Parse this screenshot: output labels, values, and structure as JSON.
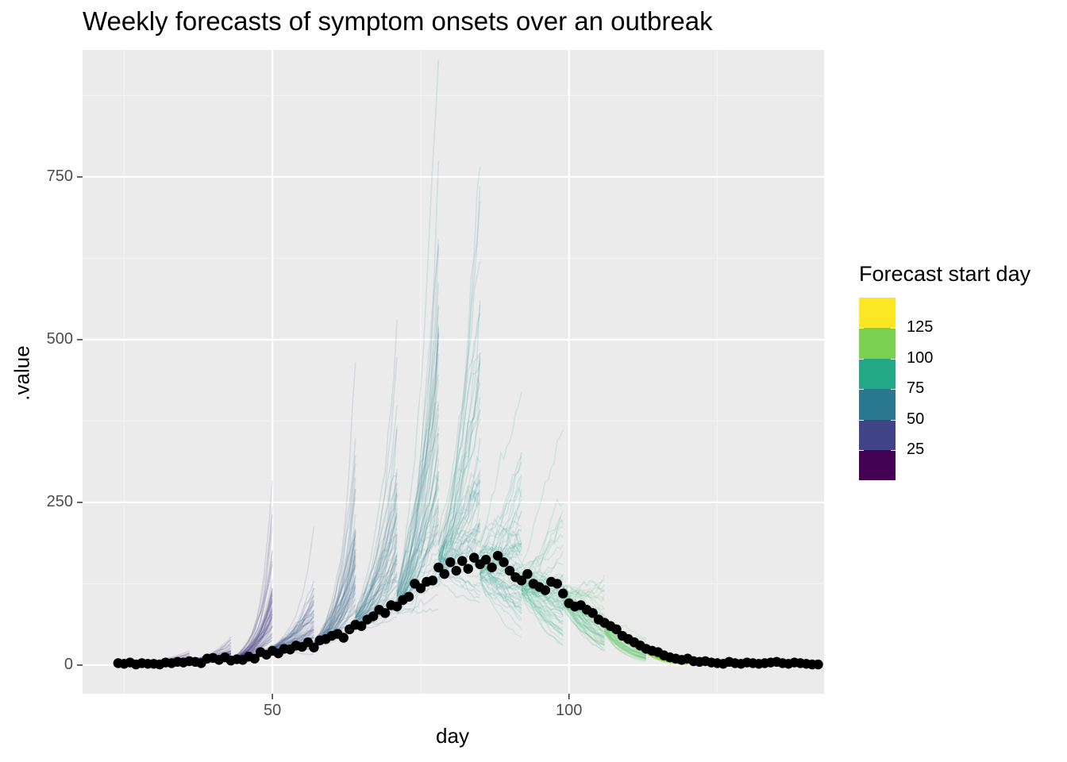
{
  "title": "Weekly forecasts of symptom onsets over an outbreak",
  "chart_data": {
    "type": "line",
    "title": "Weekly forecasts of symptom onsets over an outbreak",
    "xlabel": "day",
    "ylabel": ".value",
    "xlim": [
      18,
      143
    ],
    "ylim": [
      -44,
      945
    ],
    "x_ticks": [
      "50",
      "100"
    ],
    "y_ticks": [
      "0",
      "250",
      "500",
      "750"
    ],
    "grid": true,
    "legend": {
      "title": "Forecast start day",
      "position": "right",
      "labels": [
        "125",
        "100",
        "75",
        "50",
        "25"
      ],
      "colors": [
        "#fde725",
        "#7ad151",
        "#22a884",
        "#2a788e",
        "#414487",
        "#440154"
      ]
    },
    "observed_points": {
      "color": "#000000",
      "x": [
        24,
        25,
        26,
        27,
        28,
        29,
        30,
        31,
        32,
        33,
        34,
        35,
        36,
        37,
        38,
        39,
        40,
        41,
        42,
        43,
        44,
        45,
        46,
        47,
        48,
        49,
        50,
        51,
        52,
        53,
        54,
        55,
        56,
        57,
        58,
        59,
        60,
        61,
        62,
        63,
        64,
        65,
        66,
        67,
        68,
        69,
        70,
        71,
        72,
        73,
        74,
        75,
        76,
        77,
        78,
        79,
        80,
        81,
        82,
        83,
        84,
        85,
        86,
        87,
        88,
        89,
        90,
        91,
        92,
        93,
        94,
        95,
        96,
        97,
        98,
        99,
        100,
        101,
        102,
        103,
        104,
        105,
        106,
        107,
        108,
        109,
        110,
        111,
        112,
        113,
        114,
        115,
        116,
        117,
        118,
        119,
        120,
        121,
        122,
        123,
        124,
        125,
        126,
        127,
        128,
        129,
        130,
        131,
        132,
        133,
        134,
        135,
        136,
        137,
        138,
        139,
        140,
        141,
        142
      ],
      "y": [
        3,
        2,
        4,
        1,
        3,
        2,
        2,
        1,
        4,
        3,
        5,
        4,
        6,
        5,
        3,
        10,
        11,
        8,
        12,
        7,
        9,
        8,
        13,
        10,
        20,
        16,
        22,
        18,
        25,
        24,
        30,
        28,
        35,
        27,
        38,
        40,
        45,
        48,
        42,
        55,
        62,
        60,
        70,
        75,
        85,
        80,
        92,
        90,
        100,
        105,
        125,
        118,
        128,
        130,
        150,
        140,
        158,
        145,
        160,
        148,
        165,
        155,
        162,
        150,
        168,
        158,
        145,
        135,
        130,
        140,
        125,
        120,
        115,
        128,
        125,
        110,
        95,
        90,
        92,
        85,
        80,
        70,
        65,
        60,
        55,
        45,
        40,
        35,
        30,
        25,
        22,
        20,
        15,
        12,
        10,
        8,
        10,
        6,
        5,
        6,
        4,
        3,
        2,
        5,
        3,
        2,
        4,
        3,
        2,
        3,
        4,
        5,
        3,
        2,
        4,
        3,
        2,
        1,
        1
      ]
    },
    "forecast_windows": [
      {
        "start_day": 28,
        "end_day": 36,
        "color": "#48186a"
      },
      {
        "start_day": 36,
        "end_day": 43,
        "color": "#472d7b"
      },
      {
        "start_day": 43,
        "end_day": 50,
        "color": "#424086"
      },
      {
        "start_day": 50,
        "end_day": 57,
        "color": "#3b528b"
      },
      {
        "start_day": 57,
        "end_day": 64,
        "color": "#33638d"
      },
      {
        "start_day": 64,
        "end_day": 71,
        "color": "#2c728e"
      },
      {
        "start_day": 71,
        "end_day": 78,
        "color": "#26828e"
      },
      {
        "start_day": 78,
        "end_day": 85,
        "color": "#21918c"
      },
      {
        "start_day": 85,
        "end_day": 92,
        "color": "#1fa088"
      },
      {
        "start_day": 92,
        "end_day": 99,
        "color": "#28ae80"
      },
      {
        "start_day": 99,
        "end_day": 106,
        "color": "#3fbc73"
      },
      {
        "start_day": 106,
        "end_day": 113,
        "color": "#5ec962"
      },
      {
        "start_day": 113,
        "end_day": 120,
        "color": "#84d44b"
      },
      {
        "start_day": 120,
        "end_day": 127,
        "color": "#addc30"
      },
      {
        "start_day": 127,
        "end_day": 134,
        "color": "#d8e219"
      }
    ]
  }
}
